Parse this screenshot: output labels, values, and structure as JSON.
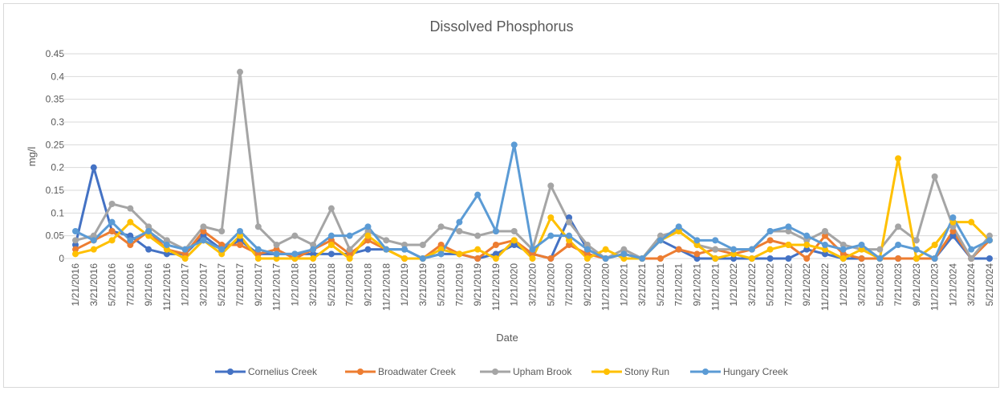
{
  "chart_data": {
    "type": "line",
    "title": "Dissolved Phosphorus",
    "x_label": "Date",
    "y_label": "mg/l",
    "categories": [
      "1/21/2016",
      "3/21/2016",
      "5/21/2016",
      "7/21/2016",
      "9/21/2016",
      "11/21/2016",
      "1/21/2017",
      "3/21/2017",
      "5/21/2017",
      "7/21/2017",
      "9/21/2017",
      "11/21/2017",
      "1/21/2018",
      "3/21/2018",
      "5/21/2018",
      "7/21/2018",
      "9/21/2018",
      "11/21/2018",
      "1/21/2019",
      "3/21/2019",
      "5/21/2019",
      "7/21/2019",
      "9/21/2019",
      "11/21/2019",
      "1/21/2020",
      "3/21/2020",
      "5/21/2020",
      "7/21/2020",
      "9/21/2020",
      "11/21/2020",
      "1/21/2021",
      "3/21/2021",
      "5/21/2021",
      "7/21/2021",
      "9/21/2021",
      "11/21/2021",
      "1/21/2022",
      "3/21/2022",
      "5/21/2022",
      "7/21/2022",
      "9/21/2022",
      "11/21/2022",
      "1/21/2023",
      "3/21/2023",
      "5/21/2023",
      "7/21/2023",
      "9/21/2023",
      "11/21/2023",
      "1/21/2024",
      "3/21/2024",
      "5/21/2024"
    ],
    "series": [
      {
        "name": "Cornelius Creek",
        "color": "#4472c4",
        "values": [
          0.03,
          0.2,
          0.06,
          0.05,
          0.02,
          0.01,
          0.01,
          0.05,
          0.02,
          0.04,
          0.01,
          0.01,
          0.01,
          0.01,
          0.01,
          0.01,
          0.02,
          0.02,
          0.02,
          0,
          0.01,
          0.01,
          0,
          0.01,
          0.03,
          0.01,
          0,
          0.09,
          0.02,
          0,
          0.01,
          0,
          0.04,
          0.02,
          0,
          0,
          0,
          0,
          0,
          0,
          0.02,
          0.01,
          0,
          0,
          0,
          0,
          0,
          0,
          0.05,
          0,
          0
        ]
      },
      {
        "name": "Broadwater Creek",
        "color": "#ed7d31",
        "values": [
          0.02,
          0.04,
          0.06,
          0.03,
          0.06,
          0.02,
          0.01,
          0.06,
          0.03,
          0.03,
          0.01,
          0.02,
          0,
          0.02,
          0.04,
          0.01,
          0.04,
          0.02,
          0,
          0,
          0.03,
          0.01,
          0,
          0.03,
          0.04,
          0.01,
          0,
          0.03,
          0.01,
          0,
          0.01,
          0,
          0,
          0.02,
          0.01,
          0.02,
          0.01,
          0.02,
          0.04,
          0.03,
          0,
          0.05,
          0.01,
          0,
          0,
          0,
          0,
          0,
          0.06,
          0,
          0.04
        ]
      },
      {
        "name": "Upham Brook",
        "color": "#a5a5a5",
        "values": [
          0.04,
          0.05,
          0.12,
          0.11,
          0.07,
          0.04,
          0.02,
          0.07,
          0.06,
          0.41,
          0.07,
          0.03,
          0.05,
          0.03,
          0.11,
          0.02,
          0.06,
          0.04,
          0.03,
          0.03,
          0.07,
          0.06,
          0.05,
          0.06,
          0.06,
          0.02,
          0.16,
          0.08,
          0.03,
          0,
          0.02,
          0,
          0.05,
          0.06,
          0.03,
          0.02,
          0.02,
          0.02,
          0.06,
          0.06,
          0.04,
          0.06,
          0.03,
          0.02,
          0.02,
          0.07,
          0.04,
          0.18,
          0.07,
          0,
          0.05
        ]
      },
      {
        "name": "Stony Run",
        "color": "#ffc000",
        "values": [
          0.01,
          0.02,
          0.04,
          0.08,
          0.05,
          0.02,
          0,
          0.04,
          0.01,
          0.05,
          0,
          0,
          0,
          0,
          0.03,
          0,
          0.05,
          0.02,
          0,
          0,
          0.02,
          0.01,
          0.02,
          0,
          0.04,
          0,
          0.09,
          0.04,
          0,
          0.02,
          0,
          0,
          0.04,
          0.06,
          0.03,
          0,
          0.01,
          0,
          0.02,
          0.03,
          0.03,
          0.02,
          0,
          0.02,
          0,
          0.22,
          0,
          0.03,
          0.08,
          0.08,
          0.04
        ]
      },
      {
        "name": "Hungary Creek",
        "color": "#5b9bd5",
        "values": [
          0.06,
          0.04,
          0.08,
          0.04,
          0.06,
          0.03,
          0.02,
          0.04,
          0.02,
          0.06,
          0.02,
          0.01,
          0.01,
          0.02,
          0.05,
          0.05,
          0.07,
          0.02,
          0.02,
          0,
          0.01,
          0.08,
          0.14,
          0.06,
          0.25,
          0.02,
          0.05,
          0.05,
          0.02,
          0,
          0.01,
          0,
          0.04,
          0.07,
          0.04,
          0.04,
          0.02,
          0.02,
          0.06,
          0.07,
          0.05,
          0.03,
          0.02,
          0.03,
          0,
          0.03,
          0.02,
          0,
          0.09,
          0.02,
          0.04
        ]
      }
    ],
    "ylim": [
      0,
      0.45
    ],
    "yticks": [
      0,
      0.05,
      0.1,
      0.15,
      0.2,
      0.25,
      0.3,
      0.35,
      0.4,
      0.45
    ],
    "grid": true,
    "legend": "bottom"
  }
}
